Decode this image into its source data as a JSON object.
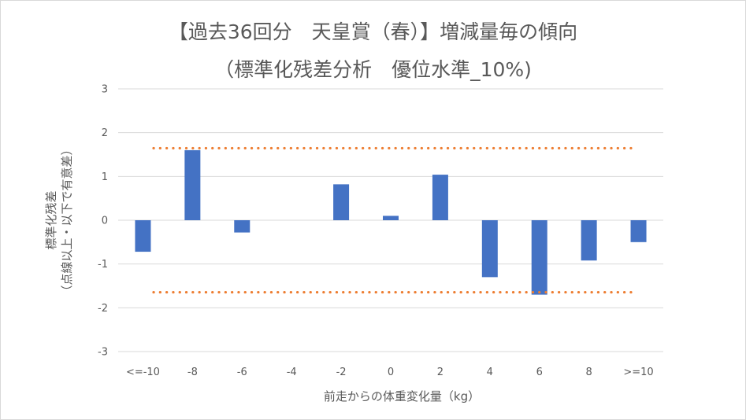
{
  "chart_data": {
    "type": "bar",
    "title": "【過去36回分　天皇賞（春）】増減量毎の傾向",
    "subtitle": "（標準化残差分析　優位水準_10%)",
    "xlabel": "前走からの体重変化量（kg）",
    "ylabel_line1": "標準化残差",
    "ylabel_line2": "（点線以上・以下で有意差）",
    "categories": [
      "<=-10",
      "-8",
      "-6",
      "-4",
      "-2",
      "0",
      "2",
      "4",
      "6",
      "8",
      ">=10"
    ],
    "values": [
      -0.72,
      1.6,
      -0.28,
      0,
      0.82,
      0.1,
      1.04,
      -1.3,
      -1.7,
      -0.92,
      -0.5
    ],
    "ylim": [
      -3,
      3
    ],
    "yticks": [
      3,
      2,
      1,
      0,
      -1,
      -2,
      -3
    ],
    "threshold_upper": 1.645,
    "threshold_lower": -1.645,
    "grid": true,
    "legend": "none",
    "bar_color": "#4472c4",
    "threshold_color": "#ed7d31",
    "grid_color": "#d9d9d9"
  }
}
